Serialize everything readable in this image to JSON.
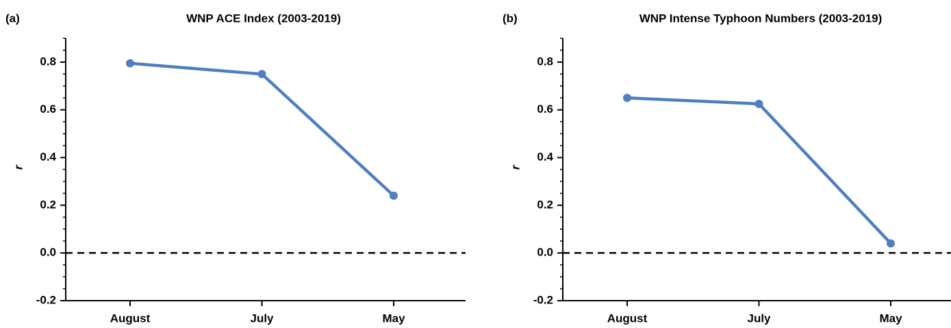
{
  "chart_data": [
    {
      "type": "line",
      "label": "(a)",
      "title": "WNP ACE Index (2003-2019)",
      "ylabel": "r",
      "categories": [
        "August",
        "July",
        "May"
      ],
      "values": [
        0.795,
        0.75,
        0.24
      ],
      "color": "#4f7fbf",
      "ylim": [
        -0.2,
        0.9
      ],
      "yticks": [
        -0.2,
        {
          "value": 0,
          "label": "0.0"
        },
        0.2,
        0.4,
        0.6,
        0.8
      ]
    },
    {
      "type": "line",
      "label": "(b)",
      "title": "WNP Intense Typhoon Numbers (2003-2019)",
      "ylabel": "r",
      "categories": [
        "August",
        "July",
        "May"
      ],
      "values": [
        0.65,
        0.625,
        0.04
      ],
      "color": "#4f7fbf",
      "ylim": [
        -0.2,
        0.9
      ],
      "yticks": [
        -0.2,
        {
          "value": 0,
          "label": "0.0"
        },
        0.2,
        0.4,
        0.6,
        0.8
      ]
    }
  ]
}
